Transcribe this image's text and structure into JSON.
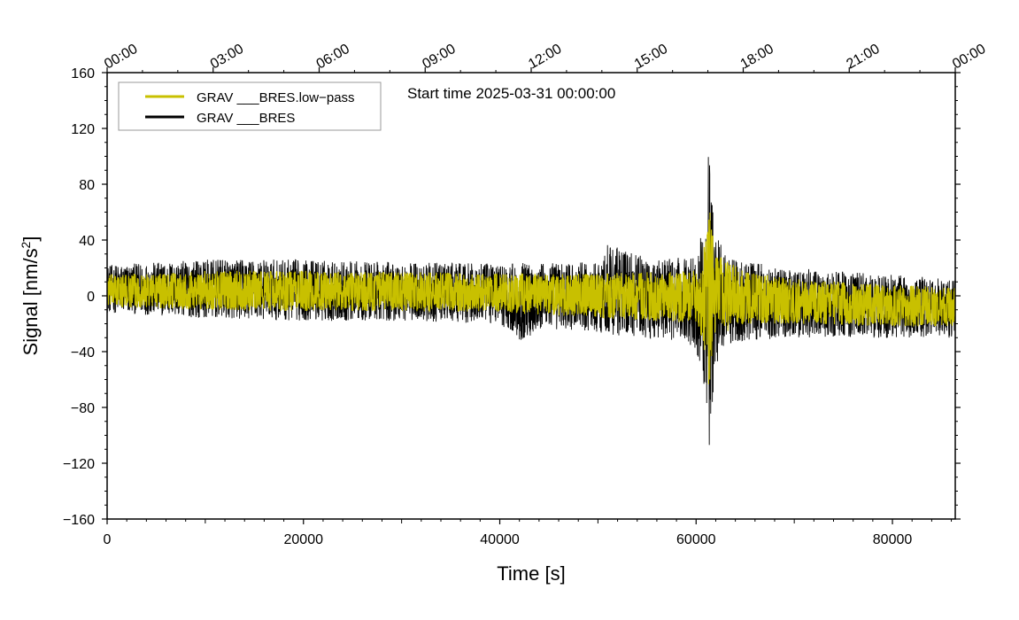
{
  "chart_data": {
    "type": "line",
    "title": "",
    "annotation": "Start time 2025-03-31 00:00:00",
    "xlabel": "Time [s]",
    "ylabel_main": "Signal [nm/s",
    "ylabel_sup": "2",
    "ylabel_end": "]",
    "xlim": [
      0,
      86400
    ],
    "ylim": [
      -160,
      160
    ],
    "x_ticks": [
      {
        "value": 0,
        "label": "0"
      },
      {
        "value": 20000,
        "label": "20000"
      },
      {
        "value": 40000,
        "label": "40000"
      },
      {
        "value": 60000,
        "label": "60000"
      },
      {
        "value": 80000,
        "label": "80000"
      }
    ],
    "y_ticks": [
      {
        "value": 160,
        "label": "160"
      },
      {
        "value": 120,
        "label": "120"
      },
      {
        "value": 80,
        "label": "80"
      },
      {
        "value": 40,
        "label": "40"
      },
      {
        "value": 0,
        "label": "0"
      },
      {
        "value": -40,
        "label": "−40"
      },
      {
        "value": -80,
        "label": "−80"
      },
      {
        "value": -120,
        "label": "−120"
      },
      {
        "value": -160,
        "label": "−160"
      }
    ],
    "top_ticks": [
      {
        "value": 0,
        "label": "00:00"
      },
      {
        "value": 10800,
        "label": "03:00"
      },
      {
        "value": 21600,
        "label": "06:00"
      },
      {
        "value": 32400,
        "label": "09:00"
      },
      {
        "value": 43200,
        "label": "12:00"
      },
      {
        "value": 54000,
        "label": "15:00"
      },
      {
        "value": 64800,
        "label": "18:00"
      },
      {
        "value": 75600,
        "label": "21:00"
      },
      {
        "value": 86400,
        "label": "00:00"
      }
    ],
    "series": [
      {
        "name": "GRAV ___BRES",
        "color": "#000000",
        "envelope": {
          "t": [
            0,
            5000,
            10000,
            20000,
            30000,
            40000,
            42000,
            45000,
            50000,
            51000,
            55000,
            58000,
            60000,
            61000,
            61300,
            61600,
            62000,
            63000,
            65000,
            70000,
            80000,
            86400
          ],
          "upper": [
            22,
            24,
            26,
            26,
            24,
            23,
            24,
            24,
            24,
            38,
            27,
            27,
            30,
            60,
            110,
            80,
            45,
            30,
            25,
            20,
            15,
            12
          ],
          "lower": [
            -12,
            -14,
            -16,
            -18,
            -18,
            -20,
            -32,
            -24,
            -26,
            -28,
            -30,
            -32,
            -38,
            -70,
            -112,
            -85,
            -50,
            -35,
            -32,
            -30,
            -30,
            -30
          ]
        }
      },
      {
        "name": "GRAV ___BRES.low−pass",
        "color": "#c8c000",
        "envelope": {
          "t": [
            0,
            5000,
            10000,
            20000,
            30000,
            40000,
            50000,
            60000,
            61000,
            61300,
            61600,
            62000,
            65000,
            70000,
            80000,
            86400
          ],
          "upper": [
            15,
            16,
            18,
            18,
            17,
            16,
            16,
            18,
            40,
            72,
            50,
            30,
            17,
            12,
            8,
            6
          ],
          "lower": [
            -8,
            -9,
            -10,
            -11,
            -11,
            -12,
            -16,
            -20,
            -45,
            -70,
            -50,
            -30,
            -20,
            -20,
            -22,
            -22
          ]
        }
      }
    ],
    "legend": {
      "placement": "top-left",
      "entries": [
        {
          "label": "GRAV ___BRES.low−pass",
          "color": "#c8c000"
        },
        {
          "label": "GRAV ___BRES",
          "color": "#000000"
        }
      ]
    }
  }
}
